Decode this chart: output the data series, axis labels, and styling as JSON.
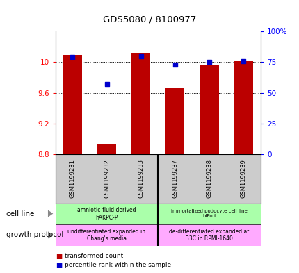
{
  "title": "GDS5080 / 8100977",
  "samples": [
    "GSM1199231",
    "GSM1199232",
    "GSM1199233",
    "GSM1199237",
    "GSM1199238",
    "GSM1199239"
  ],
  "transformed_count": [
    10.09,
    8.93,
    10.12,
    9.67,
    9.96,
    10.01
  ],
  "percentile_rank": [
    79,
    57,
    80,
    73,
    75,
    76
  ],
  "ymin": 8.8,
  "ymax": 10.4,
  "yticks": [
    8.8,
    9.2,
    9.6,
    10.0
  ],
  "ytick_labels": [
    "8.8",
    "9.2",
    "9.6",
    "10"
  ],
  "y2min": 0,
  "y2max": 100,
  "y2ticks": [
    0,
    25,
    50,
    75,
    100
  ],
  "y2ticklabels": [
    "0",
    "25",
    "50",
    "75",
    "100%"
  ],
  "bar_color": "#BB0000",
  "dot_color": "#0000CC",
  "bar_width": 0.55,
  "cell_line_labels": [
    "amniotic-fluid derived\nhAKPC-P",
    "immortalized podocyte cell line\nhIPod"
  ],
  "cell_line_color": "#aaffaa",
  "growth_protocol_labels": [
    "undifferentiated expanded in\nChang's media",
    "de-differentiated expanded at\n33C in RPMI-1640"
  ],
  "growth_protocol_color": "#ffaaff",
  "legend_tc_label": "transformed count",
  "legend_pr_label": "percentile rank within the sample",
  "cell_line_row_label": "cell line",
  "growth_protocol_row_label": "growth protocol",
  "separator_between": 3,
  "background_color": "#ffffff",
  "sample_bg": "#cccccc",
  "plot_bg": "#ffffff"
}
